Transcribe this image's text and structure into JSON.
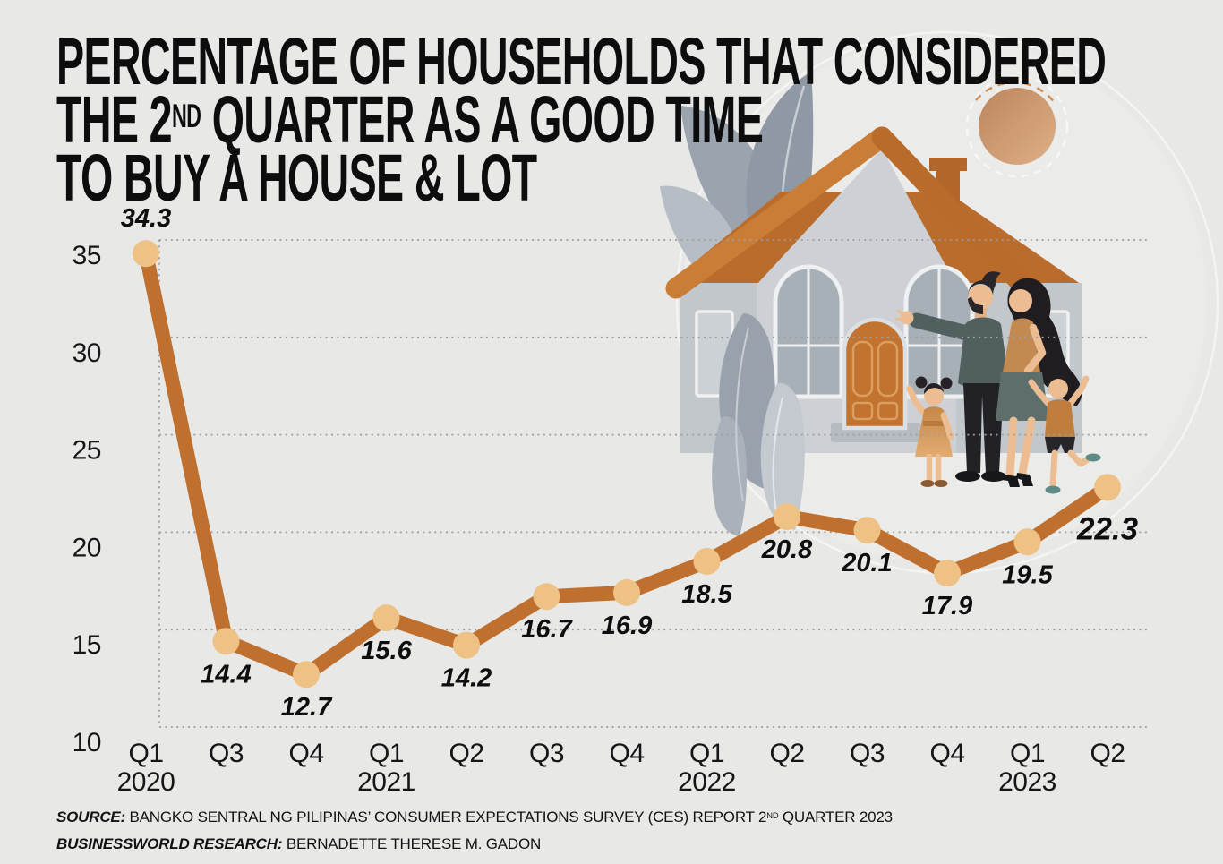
{
  "title": {
    "line1": "PERCENTAGE OF HOUSEHOLDS THAT CONSIDERED",
    "line2_pre": "THE 2",
    "line2_sup": "ND",
    "line2_post": " QUARTER AS A GOOD TIME",
    "line3": "TO BUY A HOUSE & LOT"
  },
  "chart_data": {
    "type": "line",
    "title": "Percentage of households that considered the 2nd quarter as a good time to buy a house & lot",
    "categories": [
      "Q1 2020",
      "Q3",
      "Q4",
      "Q1 2021",
      "Q2",
      "Q3",
      "Q4",
      "Q1 2022",
      "Q2",
      "Q3",
      "Q4",
      "Q1 2023",
      "Q2"
    ],
    "values": [
      34.3,
      14.4,
      12.7,
      15.6,
      14.2,
      16.7,
      16.9,
      18.5,
      20.8,
      20.1,
      17.9,
      19.5,
      22.3
    ],
    "xlabel": "",
    "ylabel": "",
    "ylim": [
      10,
      35
    ],
    "yticks": [
      35,
      30,
      25,
      20,
      15,
      10
    ],
    "grid": "dotted horizontal gridlines and dotted left axis",
    "legend": "none",
    "line_color": "#bf702e",
    "marker_color": "#eec185",
    "label_style": "bold italic value above first point, below all others, last value enlarged"
  },
  "illustration": {
    "alt": "Family of four (man, woman, girl, boy) standing in front of a gray house with orange roof, door and chimney, gray leaves and a copper sun"
  },
  "footer": {
    "source_label": "SOURCE:",
    "source_pre": " BANGKO SENTRAL NG PILIPINAS’ CONSUMER EXPECTATIONS SURVEY (CES) REPORT 2",
    "source_sup": "ND",
    "source_post": " QUARTER 2023",
    "research_label": "BUSINESSWORLD RESEARCH:",
    "research_value": " BERNADETTE THERESE M. GADON"
  }
}
